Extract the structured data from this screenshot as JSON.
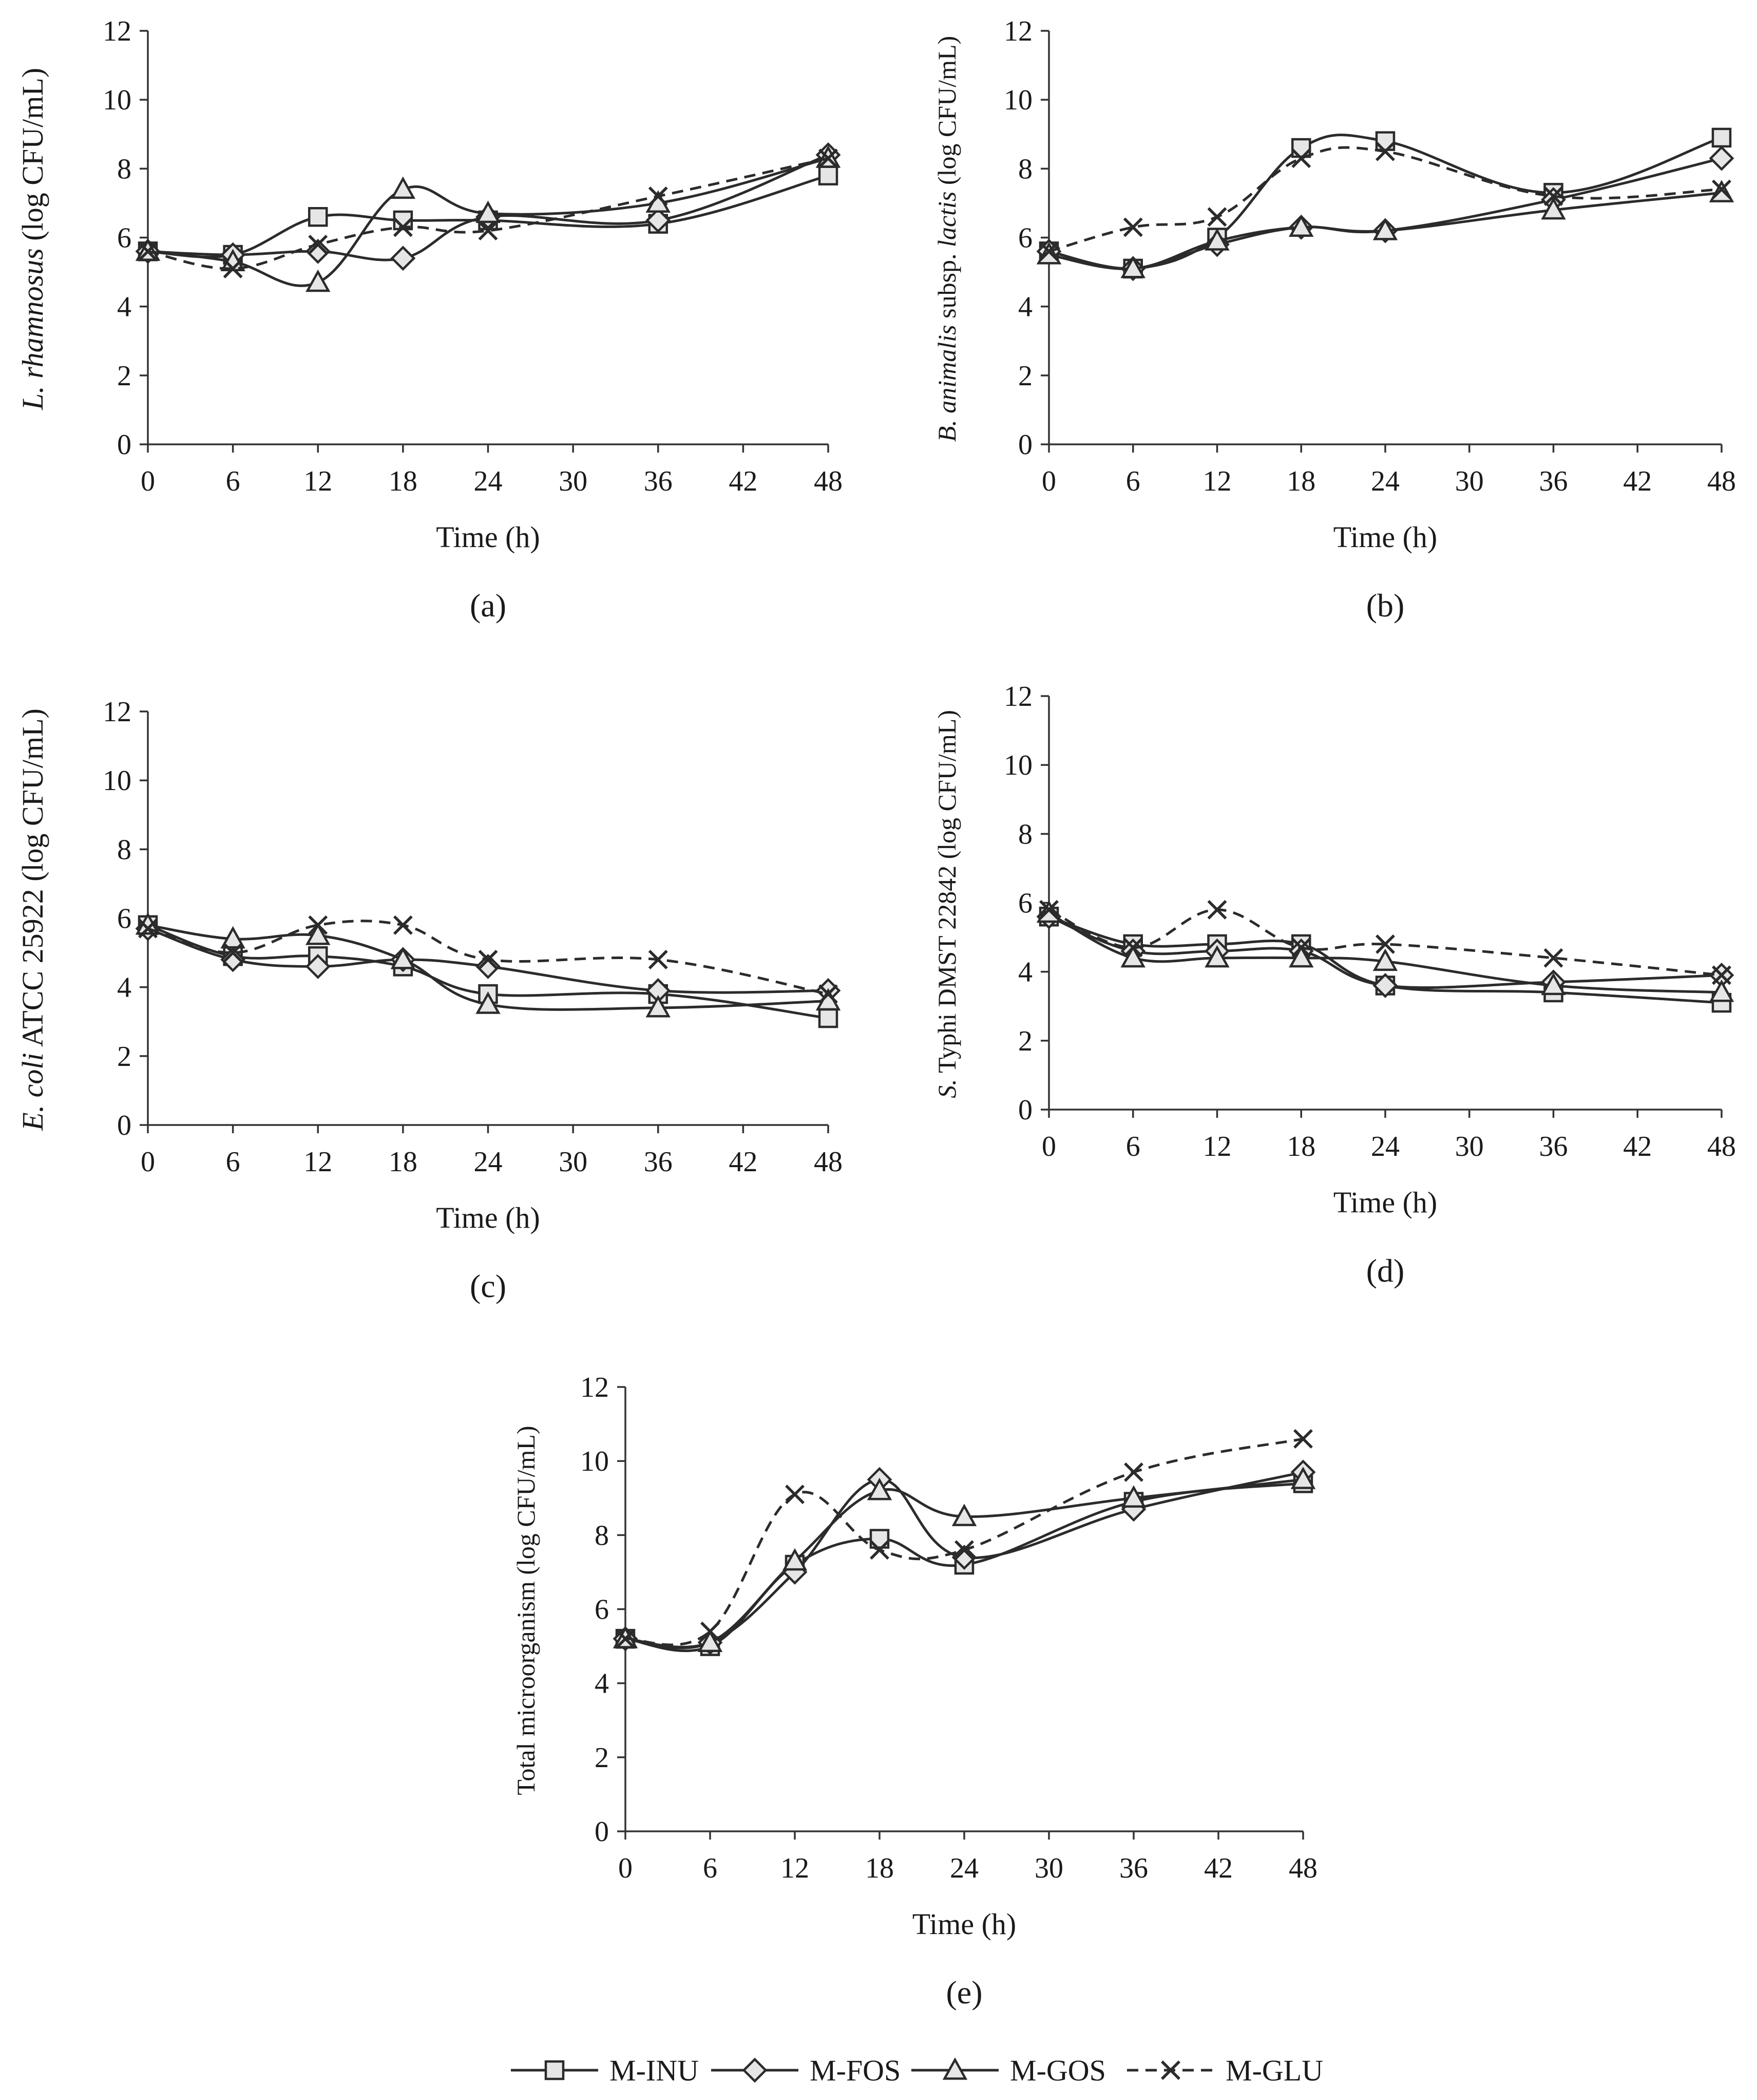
{
  "legend": [
    {
      "key": "inu",
      "label": "M-INU",
      "marker": "square",
      "dashed": false
    },
    {
      "key": "fos",
      "label": "M-FOS",
      "marker": "diamond",
      "dashed": false
    },
    {
      "key": "gos",
      "label": "M-GOS",
      "marker": "triangle",
      "dashed": false
    },
    {
      "key": "glu",
      "label": "M-GLU",
      "marker": "cross",
      "dashed": true
    }
  ],
  "chart_data": [
    {
      "id": "a",
      "type": "line",
      "panel_label": "(a)",
      "xlabel": "Time (h)",
      "ylabel_parts": [
        {
          "text": "L. rhamnosus",
          "italic": true
        },
        {
          "text": " (log CFU/mL)",
          "italic": false
        }
      ],
      "xlim": [
        0,
        48
      ],
      "ylim": [
        0,
        12
      ],
      "xticks": [
        0,
        6,
        12,
        18,
        24,
        30,
        36,
        42,
        48
      ],
      "yticks": [
        0,
        2,
        4,
        6,
        8,
        10,
        12
      ],
      "x": [
        0,
        6,
        12,
        18,
        24,
        36,
        48
      ],
      "series": [
        {
          "name": "M-INU",
          "values": [
            5.6,
            5.5,
            6.6,
            6.5,
            6.5,
            6.4,
            7.8
          ]
        },
        {
          "name": "M-FOS",
          "values": [
            5.6,
            5.5,
            5.6,
            5.4,
            6.6,
            6.5,
            8.4
          ]
        },
        {
          "name": "M-GOS",
          "values": [
            5.6,
            5.3,
            4.7,
            7.4,
            6.7,
            7.0,
            8.3
          ]
        },
        {
          "name": "M-GLU",
          "values": [
            5.6,
            5.1,
            5.8,
            6.3,
            6.2,
            7.2,
            8.3
          ]
        }
      ]
    },
    {
      "id": "b",
      "type": "line",
      "panel_label": "(b)",
      "xlabel": "Time (h)",
      "ylabel_parts": [
        {
          "text": "B. animalis",
          "italic": true
        },
        {
          "text": " subsp. ",
          "italic": false
        },
        {
          "text": "lactis",
          "italic": true
        },
        {
          "text": " (log CFU/mL)",
          "italic": false
        }
      ],
      "xlim": [
        0,
        48
      ],
      "ylim": [
        0,
        12
      ],
      "xticks": [
        0,
        6,
        12,
        18,
        24,
        30,
        36,
        42,
        48
      ],
      "yticks": [
        0,
        2,
        4,
        6,
        8,
        10,
        12
      ],
      "x": [
        0,
        6,
        12,
        18,
        24,
        36,
        48
      ],
      "series": [
        {
          "name": "M-INU",
          "values": [
            5.6,
            5.1,
            6.0,
            8.6,
            8.8,
            7.3,
            8.9
          ]
        },
        {
          "name": "M-FOS",
          "values": [
            5.6,
            5.1,
            5.8,
            6.3,
            6.2,
            7.1,
            8.3
          ]
        },
        {
          "name": "M-GOS",
          "values": [
            5.5,
            5.1,
            5.9,
            6.3,
            6.2,
            6.8,
            7.3
          ]
        },
        {
          "name": "M-GLU",
          "values": [
            5.6,
            6.3,
            6.6,
            8.3,
            8.5,
            7.2,
            7.4
          ]
        }
      ]
    },
    {
      "id": "c",
      "type": "line",
      "panel_label": "(c)",
      "xlabel": "Time (h)",
      "ylabel_parts": [
        {
          "text": "E. coli",
          "italic": true
        },
        {
          "text": " ATCC 25922 (log CFU/mL)",
          "italic": false
        }
      ],
      "xlim": [
        0,
        48
      ],
      "ylim": [
        0,
        12
      ],
      "xticks": [
        0,
        6,
        12,
        18,
        24,
        30,
        36,
        42,
        48
      ],
      "yticks": [
        0,
        2,
        4,
        6,
        8,
        10,
        12
      ],
      "x": [
        0,
        6,
        12,
        18,
        24,
        36,
        48
      ],
      "series": [
        {
          "name": "M-INU",
          "values": [
            5.8,
            4.9,
            4.9,
            4.6,
            3.8,
            3.8,
            3.1
          ]
        },
        {
          "name": "M-FOS",
          "values": [
            5.7,
            4.8,
            4.6,
            4.8,
            4.6,
            3.9,
            3.9
          ]
        },
        {
          "name": "M-GOS",
          "values": [
            5.8,
            5.4,
            5.5,
            4.8,
            3.5,
            3.4,
            3.6
          ]
        },
        {
          "name": "M-GLU",
          "values": [
            5.7,
            5.0,
            5.8,
            5.8,
            4.8,
            4.8,
            3.8
          ]
        }
      ]
    },
    {
      "id": "d",
      "type": "line",
      "panel_label": "(d)",
      "xlabel": "Time (h)",
      "ylabel_parts": [
        {
          "text": "S.",
          "italic": true
        },
        {
          "text": " Typhi DMST 22842 (log CFU/mL)",
          "italic": false
        }
      ],
      "xlim": [
        0,
        48
      ],
      "ylim": [
        0,
        12
      ],
      "xticks": [
        0,
        6,
        12,
        18,
        24,
        30,
        36,
        42,
        48
      ],
      "yticks": [
        0,
        2,
        4,
        6,
        8,
        10,
        12
      ],
      "x": [
        0,
        6,
        12,
        18,
        24,
        36,
        48
      ],
      "series": [
        {
          "name": "M-INU",
          "values": [
            5.6,
            4.8,
            4.8,
            4.8,
            3.6,
            3.4,
            3.1
          ]
        },
        {
          "name": "M-FOS",
          "values": [
            5.6,
            4.6,
            4.6,
            4.6,
            3.6,
            3.7,
            3.9
          ]
        },
        {
          "name": "M-GOS",
          "values": [
            5.7,
            4.4,
            4.4,
            4.4,
            4.3,
            3.6,
            3.4
          ]
        },
        {
          "name": "M-GLU",
          "values": [
            5.8,
            4.7,
            5.8,
            4.7,
            4.8,
            4.4,
            3.9
          ]
        }
      ]
    },
    {
      "id": "e",
      "type": "line",
      "panel_label": "(e)",
      "xlabel": "Time (h)",
      "ylabel_parts": [
        {
          "text": "Total microorganism (log CFU/mL)",
          "italic": false
        }
      ],
      "xlim": [
        0,
        48
      ],
      "ylim": [
        0,
        12
      ],
      "xticks": [
        0,
        6,
        12,
        18,
        24,
        30,
        36,
        42,
        48
      ],
      "yticks": [
        0,
        2,
        4,
        6,
        8,
        10,
        12
      ],
      "x": [
        0,
        6,
        12,
        18,
        24,
        36,
        48
      ],
      "series": [
        {
          "name": "M-INU",
          "values": [
            5.2,
            5.0,
            7.2,
            7.9,
            7.2,
            8.9,
            9.4
          ]
        },
        {
          "name": "M-FOS",
          "values": [
            5.2,
            5.1,
            7.0,
            9.5,
            7.4,
            8.7,
            9.7
          ]
        },
        {
          "name": "M-GOS",
          "values": [
            5.2,
            5.1,
            7.3,
            9.2,
            8.5,
            9.0,
            9.5
          ]
        },
        {
          "name": "M-GLU",
          "values": [
            5.2,
            5.4,
            9.1,
            7.6,
            7.6,
            9.7,
            10.6
          ]
        }
      ]
    }
  ]
}
